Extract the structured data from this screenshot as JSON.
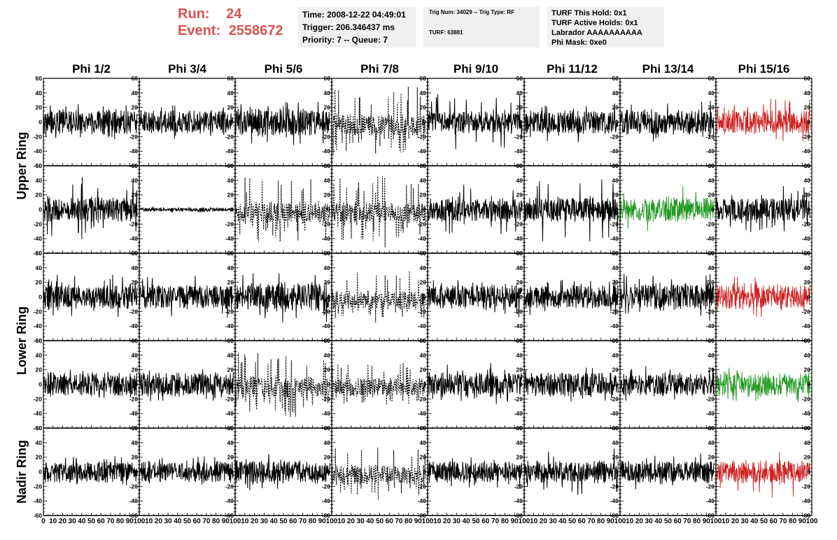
{
  "header": {
    "run_label": "Run:",
    "run_value": "24",
    "event_label": "Event:",
    "event_value": "2558672",
    "time": "Time: 2008-12-22 04:49:01",
    "trigger": "Trigger: 206.346437 ms",
    "priority": "Priority: 7 -- Queue: 7",
    "trig_num": "Trig Num: 34029 -- Trig Type: RF",
    "turf": "TURF: 63881",
    "turf_this_hold": "TURF This Hold: 0x1",
    "turf_active_holds": "TURF Active Holds: 0x1",
    "labrador": "Labrador AAAAAAAAAA",
    "phi_mask": "Phi Mask: 0xe0"
  },
  "colors": {
    "header_red": "#d9534f",
    "box_bg": "#f0f0f0",
    "trace_black": "#000000",
    "trace_red": "#cc2222",
    "trace_green": "#229922"
  },
  "chart_data": {
    "type": "line",
    "title": "",
    "column_labels": [
      "Phi 1/2",
      "Phi 3/4",
      "Phi 5/6",
      "Phi 7/8",
      "Phi 9/10",
      "Phi 11/12",
      "Phi 13/14",
      "Phi 15/16"
    ],
    "row_groups": [
      {
        "label": "Upper Ring",
        "rows": [
          0,
          1
        ]
      },
      {
        "label": "Lower Ring",
        "rows": [
          2,
          3
        ]
      },
      {
        "label": "Nadir Ring",
        "rows": [
          4
        ]
      }
    ],
    "xlim": [
      0,
      100
    ],
    "ylim": [
      -60,
      60
    ],
    "x_tick_labels": [
      "0",
      "10",
      "20",
      "30",
      "40",
      "50",
      "60",
      "70",
      "80",
      "90",
      "100"
    ],
    "y_tick_labels": [
      "60",
      "40",
      "20",
      "0",
      "-20",
      "-40",
      "-60"
    ],
    "samples_per_trace": 260,
    "panels": [
      [
        {
          "style": "solid",
          "color": "black",
          "amplitude": 20,
          "spike": 32
        },
        {
          "style": "solid",
          "color": "black",
          "amplitude": 19,
          "spike": 28
        },
        {
          "style": "solid",
          "color": "black",
          "amplitude": 22,
          "spike": 40
        },
        {
          "style": "dotted",
          "color": "black",
          "amplitude": 24,
          "spike": 60
        },
        {
          "style": "solid",
          "color": "black",
          "amplitude": 18,
          "spike": 48
        },
        {
          "style": "solid",
          "color": "black",
          "amplitude": 19,
          "spike": 34
        },
        {
          "style": "solid",
          "color": "black",
          "amplitude": 20,
          "spike": 36
        },
        {
          "style": "solid",
          "color": "red",
          "amplitude": 20,
          "spike": 40
        }
      ],
      [
        {
          "style": "solid",
          "color": "black",
          "amplitude": 20,
          "spike": 50
        },
        {
          "style": "solid",
          "color": "black",
          "amplitude": 3,
          "spike": 5
        },
        {
          "style": "dotted",
          "color": "black",
          "amplitude": 26,
          "spike": 58
        },
        {
          "style": "dotted",
          "color": "black",
          "amplitude": 24,
          "spike": 58
        },
        {
          "style": "solid",
          "color": "black",
          "amplitude": 20,
          "spike": 45
        },
        {
          "style": "solid",
          "color": "black",
          "amplitude": 20,
          "spike": 56
        },
        {
          "style": "solid",
          "color": "green",
          "amplitude": 20,
          "spike": 40
        },
        {
          "style": "solid",
          "color": "black",
          "amplitude": 20,
          "spike": 40
        }
      ],
      [
        {
          "style": "solid",
          "color": "black",
          "amplitude": 20,
          "spike": 36
        },
        {
          "style": "solid",
          "color": "black",
          "amplitude": 20,
          "spike": 36
        },
        {
          "style": "solid",
          "color": "black",
          "amplitude": 24,
          "spike": 48
        },
        {
          "style": "dotted",
          "color": "black",
          "amplitude": 22,
          "spike": 44
        },
        {
          "style": "solid",
          "color": "black",
          "amplitude": 19,
          "spike": 34
        },
        {
          "style": "solid",
          "color": "black",
          "amplitude": 19,
          "spike": 32
        },
        {
          "style": "solid",
          "color": "black",
          "amplitude": 22,
          "spike": 40
        },
        {
          "style": "solid",
          "color": "red",
          "amplitude": 20,
          "spike": 36
        }
      ],
      [
        {
          "style": "solid",
          "color": "black",
          "amplitude": 19,
          "spike": 28
        },
        {
          "style": "solid",
          "color": "black",
          "amplitude": 19,
          "spike": 30
        },
        {
          "style": "dotted",
          "color": "black",
          "amplitude": 26,
          "spike": 58
        },
        {
          "style": "dotted",
          "color": "black",
          "amplitude": 22,
          "spike": 36
        },
        {
          "style": "solid",
          "color": "black",
          "amplitude": 20,
          "spike": 34
        },
        {
          "style": "solid",
          "color": "black",
          "amplitude": 20,
          "spike": 32
        },
        {
          "style": "solid",
          "color": "black",
          "amplitude": 18,
          "spike": 30
        },
        {
          "style": "solid",
          "color": "green",
          "amplitude": 20,
          "spike": 34
        }
      ],
      [
        {
          "style": "solid",
          "color": "black",
          "amplitude": 17,
          "spike": 28
        },
        {
          "style": "solid",
          "color": "black",
          "amplitude": 17,
          "spike": 26
        },
        {
          "style": "solid",
          "color": "black",
          "amplitude": 20,
          "spike": 32
        },
        {
          "style": "dotted",
          "color": "black",
          "amplitude": 22,
          "spike": 44
        },
        {
          "style": "solid",
          "color": "black",
          "amplitude": 17,
          "spike": 28
        },
        {
          "style": "solid",
          "color": "black",
          "amplitude": 19,
          "spike": 42
        },
        {
          "style": "solid",
          "color": "black",
          "amplitude": 18,
          "spike": 30
        },
        {
          "style": "solid",
          "color": "red",
          "amplitude": 19,
          "spike": 44
        }
      ]
    ]
  }
}
